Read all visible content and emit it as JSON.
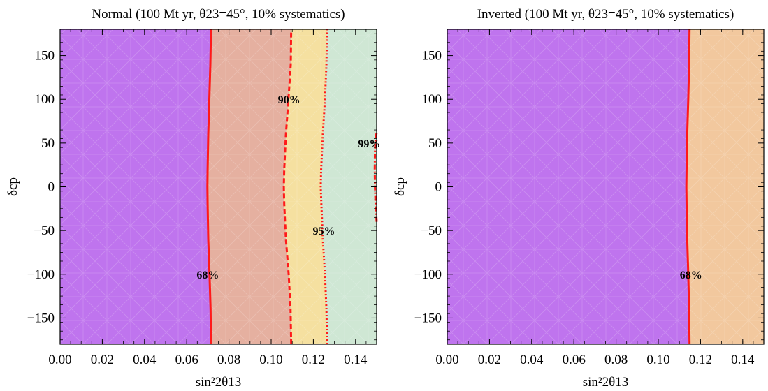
{
  "chart_data": [
    {
      "type": "contour",
      "title": "Normal (100 Mt yr, θ23=45°, 10% systematics)",
      "xlabel": "sin²2θ13",
      "ylabel": "δcp",
      "xlim": [
        0,
        0.15
      ],
      "ylim": [
        -180,
        180
      ],
      "xticks": [
        "0.00",
        "0.02",
        "0.04",
        "0.06",
        "0.08",
        "0.10",
        "0.12",
        "0.14"
      ],
      "yticks": [
        "−150",
        "−100",
        "−50",
        "0",
        "50",
        "100",
        "150"
      ],
      "region_colors": [
        "#bf74ee",
        "#e5b0a0",
        "#f5e0a0",
        "#cfe7d4"
      ],
      "contours": [
        {
          "label": "68%",
          "color": "#ff1a1a",
          "style": "solid",
          "x": [
            0.0715,
            0.0713,
            0.0708,
            0.0702,
            0.0699,
            0.0698,
            0.0699,
            0.0702,
            0.0707,
            0.0712,
            0.0715
          ],
          "y": [
            -180,
            -140,
            -100,
            -60,
            -20,
            0,
            20,
            60,
            100,
            140,
            180
          ],
          "label_at": [
            0.07,
            -100
          ]
        },
        {
          "label": "90%",
          "color": "#ff1a1a",
          "style": "dashed",
          "x": [
            0.1095,
            0.1092,
            0.1083,
            0.107,
            0.1062,
            0.106,
            0.1062,
            0.107,
            0.1082,
            0.1093,
            0.1095
          ],
          "y": [
            -180,
            -140,
            -100,
            -60,
            -20,
            0,
            20,
            60,
            100,
            140,
            180
          ],
          "label_at": [
            0.1085,
            100
          ]
        },
        {
          "label": "95%",
          "color": "#ff1a1a",
          "style": "dotted",
          "x": [
            0.1265,
            0.1262,
            0.1255,
            0.1245,
            0.1238,
            0.1235,
            0.1237,
            0.1245,
            0.1255,
            0.1262,
            0.1265
          ],
          "y": [
            -180,
            -140,
            -100,
            -60,
            -20,
            0,
            20,
            60,
            100,
            140,
            180
          ],
          "label_at": [
            0.125,
            -50
          ]
        },
        {
          "label": "99%",
          "color": "#ff1a1a",
          "style": "dashdot",
          "x": [
            0.15,
            0.1495,
            0.1492,
            0.1491,
            0.1492,
            0.1495,
            0.15
          ],
          "y": [
            -40,
            -20,
            0,
            20,
            40,
            55,
            62
          ],
          "label_at": [
            0.1465,
            50
          ]
        }
      ]
    },
    {
      "type": "contour",
      "title": "Inverted (100 Mt yr, θ23=45°, 10% systematics)",
      "xlabel": "sin²2θ13",
      "ylabel": "δcp",
      "xlim": [
        0,
        0.15
      ],
      "ylim": [
        -180,
        180
      ],
      "xticks": [
        "0.00",
        "0.02",
        "0.04",
        "0.06",
        "0.08",
        "0.10",
        "0.12",
        "0.14"
      ],
      "yticks": [
        "−150",
        "−100",
        "−50",
        "0",
        "50",
        "100",
        "150"
      ],
      "region_colors": [
        "#bf74ee",
        "#f2c89e"
      ],
      "contours": [
        {
          "label": "68%",
          "color": "#ff1a1a",
          "style": "solid",
          "x": [
            0.1148,
            0.1146,
            0.1142,
            0.1137,
            0.1134,
            0.1133,
            0.1134,
            0.1137,
            0.1142,
            0.1146,
            0.1148
          ],
          "y": [
            -180,
            -140,
            -100,
            -60,
            -20,
            0,
            20,
            60,
            100,
            140,
            180
          ],
          "label_at": [
            0.1155,
            -100
          ]
        }
      ]
    }
  ]
}
